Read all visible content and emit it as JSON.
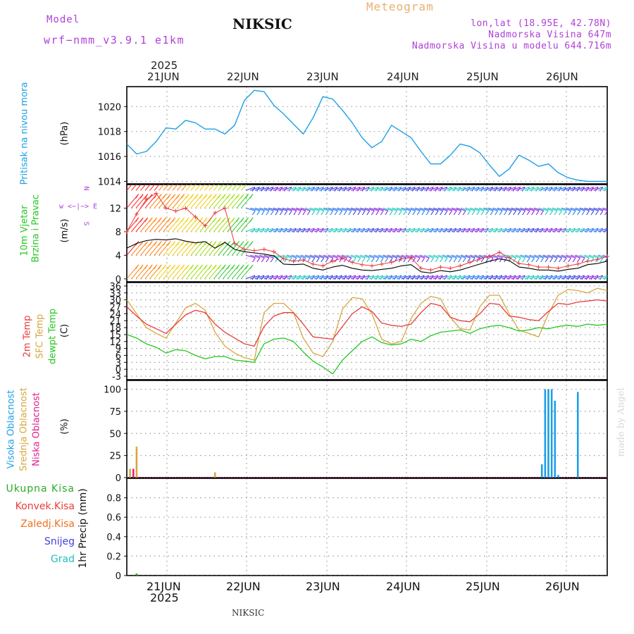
{
  "header": {
    "model_label": "Model",
    "model_name": "wrf−nmm_v3.9.1 e1km",
    "station": "NIKSIC",
    "title": "Meteogram",
    "coords": "lon,lat (18.95E, 42.78N)",
    "elevation": "Nadmorska Visina 647m",
    "model_elevation": "Nadmorska Visina u modelu 644.716m"
  },
  "footer": {
    "station": "NIKSIC",
    "credit": "made by Angel"
  },
  "colors": {
    "pressure": "#1E9FE6",
    "temp2m": "#E83C3C",
    "sfc_temp": "#D9A640",
    "dewpoint": "#22C81E",
    "label_purple": "#B040D8",
    "label_orange": "#F5A83C",
    "cloud_high": "#1E9FE6",
    "cloud_mid": "#D9A640",
    "cloud_low": "#E0208A",
    "precip_total": "#2AAA2A",
    "precip_conv": "#E83C3C",
    "precip_frz": "#F07020",
    "precip_snow": "#4040E0",
    "precip_grad": "#20C0C0"
  },
  "chart_data": [
    {
      "panel": "pressure",
      "type": "line",
      "year_top": "2025",
      "day_labels": [
        "21JUN",
        "22JUN",
        "23JUN",
        "24JUN",
        "25JUN",
        "26JUN"
      ],
      "label_1": "Pritisak na nivou mora",
      "unit": "(hPa)",
      "ylim": [
        1013.8,
        1021.6
      ],
      "yticks": [
        1014,
        1016,
        1018,
        1020
      ],
      "grid": true,
      "x_hours": [
        0,
        3,
        6,
        9,
        12,
        15,
        18,
        21,
        24,
        27,
        30,
        33,
        36,
        39,
        42,
        45,
        48,
        51,
        54,
        57,
        60,
        63,
        66,
        69,
        72,
        75,
        78,
        81,
        84,
        87,
        90,
        93,
        96,
        99,
        102,
        105,
        108,
        111,
        114,
        117,
        120,
        123,
        126,
        129,
        132,
        135,
        138,
        141,
        144,
        147
      ],
      "values": [
        1017.0,
        1016.2,
        1016.4,
        1017.2,
        1018.3,
        1018.2,
        1018.9,
        1018.7,
        1018.2,
        1018.2,
        1017.8,
        1018.5,
        1020.5,
        1021.3,
        1021.2,
        1020.1,
        1019.4,
        1018.6,
        1017.8,
        1019.1,
        1020.8,
        1020.6,
        1019.7,
        1018.7,
        1017.5,
        1016.7,
        1017.2,
        1018.5,
        1018.0,
        1017.5,
        1016.4,
        1015.4,
        1015.4,
        1016.1,
        1017.0,
        1016.8,
        1016.3,
        1015.3,
        1014.4,
        1015.0,
        1016.1,
        1015.7,
        1015.2,
        1015.4,
        1014.7,
        1014.3,
        1014.1,
        1014.0,
        1014.0,
        1014.0
      ]
    },
    {
      "panel": "wind",
      "type": "line",
      "label_1": "10m Vjetar",
      "label_2": "Brzina i Pravac",
      "unit": "(m/s)",
      "compass_1": "N",
      "compass_2": "w <−|−> E",
      "compass_3": "S",
      "ylim": [
        -0.5,
        16
      ],
      "yticks": [
        0,
        4,
        8,
        12
      ],
      "grid": true,
      "x_hours": [
        0,
        3,
        6,
        9,
        12,
        15,
        18,
        21,
        24,
        27,
        30,
        33,
        36,
        39,
        42,
        45,
        48,
        51,
        54,
        57,
        60,
        63,
        66,
        69,
        72,
        75,
        78,
        81,
        84,
        87,
        90,
        93,
        96,
        99,
        102,
        105,
        108,
        111,
        114,
        117,
        120,
        123,
        126,
        129,
        132,
        135,
        138,
        141,
        144,
        147
      ],
      "series": [
        {
          "values": [
            5.2,
            6.0,
            6.5,
            6.7,
            6.6,
            6.8,
            6.4,
            6.1,
            6.3,
            5.2,
            6.2,
            5.0,
            4.6,
            4.4,
            4.2,
            3.9,
            2.5,
            2.4,
            2.5,
            1.8,
            1.5,
            2.0,
            2.3,
            1.8,
            1.5,
            1.4,
            1.6,
            1.8,
            2.2,
            2.4,
            1.2,
            1.0,
            1.4,
            1.2,
            1.5,
            2.0,
            2.5,
            3.0,
            3.4,
            3.1,
            2.0,
            1.8,
            1.5,
            1.5,
            1.3,
            1.6,
            1.8,
            2.4,
            2.6,
            3.0
          ]
        },
        {
          "values": [
            8.0,
            11.0,
            13.5,
            14.5,
            12.0,
            11.5,
            12.0,
            10.5,
            9.0,
            11.2,
            12.0,
            6.0,
            5.0,
            4.8,
            5.0,
            4.6,
            3.4,
            3.0,
            3.2,
            2.5,
            2.2,
            3.0,
            3.5,
            2.8,
            2.4,
            2.2,
            2.5,
            2.8,
            3.4,
            3.6,
            1.8,
            1.5,
            2.0,
            1.8,
            2.2,
            2.8,
            3.4,
            3.8,
            4.5,
            3.6,
            2.6,
            2.4,
            2.0,
            2.0,
            1.8,
            2.2,
            2.5,
            3.0,
            3.3,
            3.8
          ]
        }
      ]
    },
    {
      "panel": "temperature",
      "type": "line",
      "label_1": "2m Temp",
      "label_2": "SFC Temp",
      "label_3": "dewpt Temp",
      "unit": "(C)",
      "ylim": [
        -4.5,
        37.5
      ],
      "yticks": [
        -3,
        0,
        3,
        6,
        9,
        12,
        15,
        18,
        21,
        24,
        27,
        30,
        33,
        36
      ],
      "grid": true,
      "x_hours": [
        0,
        3,
        6,
        9,
        12,
        15,
        18,
        21,
        24,
        27,
        30,
        33,
        36,
        39,
        42,
        45,
        48,
        51,
        54,
        57,
        60,
        63,
        66,
        69,
        72,
        75,
        78,
        81,
        84,
        87,
        90,
        93,
        96,
        99,
        102,
        105,
        108,
        111,
        114,
        117,
        120,
        123,
        126,
        129,
        132,
        135,
        138,
        141,
        144,
        147
      ],
      "series": [
        {
          "values": [
            27.0,
            23.0,
            19.5,
            17.5,
            15.5,
            19.5,
            23.5,
            25.5,
            24.5,
            19.5,
            16.0,
            13.5,
            11.0,
            10.0,
            18.5,
            23.0,
            24.5,
            24.5,
            19.5,
            14.0,
            13.5,
            13.0,
            18.5,
            24.0,
            27.0,
            25.0,
            20.0,
            19.0,
            18.5,
            19.5,
            24.5,
            28.5,
            27.5,
            22.5,
            21.0,
            20.5,
            24.0,
            28.5,
            28.0,
            23.0,
            22.5,
            21.5,
            21.0,
            25.0,
            28.5,
            28.0,
            29.0,
            29.5,
            30.0,
            29.5
          ]
        },
        {
          "values": [
            30.0,
            24.0,
            18.0,
            15.5,
            13.5,
            20.0,
            26.5,
            28.5,
            25.5,
            16.0,
            10.0,
            7.0,
            5.0,
            4.0,
            24.5,
            28.5,
            28.5,
            24.5,
            13.5,
            7.0,
            5.5,
            12.0,
            26.0,
            31.0,
            30.5,
            24.0,
            13.0,
            11.0,
            12.0,
            22.0,
            28.5,
            31.5,
            30.5,
            22.5,
            17.5,
            17.0,
            27.0,
            32.0,
            32.0,
            24.0,
            17.0,
            15.5,
            14.0,
            24.0,
            32.0,
            34.5,
            34.0,
            33.0,
            35.0,
            34.0
          ]
        },
        {
          "values": [
            15.0,
            13.5,
            11.0,
            9.5,
            7.0,
            8.5,
            8.0,
            6.0,
            4.5,
            5.5,
            5.5,
            4.0,
            3.5,
            3.0,
            11.0,
            13.0,
            13.5,
            12.0,
            7.5,
            3.5,
            1.0,
            -2.0,
            4.0,
            8.0,
            12.0,
            14.0,
            11.5,
            10.5,
            11.0,
            13.0,
            12.0,
            14.5,
            16.0,
            16.5,
            17.0,
            15.5,
            17.5,
            18.5,
            19.0,
            18.0,
            16.5,
            17.0,
            18.0,
            17.5,
            18.5,
            19.0,
            18.5,
            19.5,
            19.0,
            19.5
          ]
        }
      ]
    },
    {
      "panel": "clouds",
      "type": "bar",
      "label_1": "Visoka Oblacnost",
      "label_2": "Srednja Oblacnost",
      "label_3": "Niska Oblacnost",
      "unit": "(%)",
      "ylim": [
        0,
        110
      ],
      "yticks": [
        0,
        25,
        50,
        75,
        100
      ],
      "grid": true,
      "series": [
        {
          "x_hours": [
            127,
            128,
            129,
            130,
            131,
            132,
            138
          ],
          "values": [
            15,
            100,
            100,
            100,
            87,
            3,
            97
          ]
        },
        {
          "x_hours": [
            1,
            3,
            27
          ],
          "values": [
            10,
            35,
            6
          ]
        },
        {
          "x_hours": [
            2
          ],
          "values": [
            10
          ]
        }
      ]
    },
    {
      "panel": "precipitation",
      "type": "bar",
      "unit": "1hr Precip (mm)",
      "legend": [
        "Ukupna Kisa",
        "Konvek.Kisa",
        "Zaledj.Kisa",
        "Snijeg",
        "Grad"
      ],
      "ylim": [
        0,
        1.0
      ],
      "yticks": [
        0,
        0.2,
        0.4,
        0.6,
        0.8
      ],
      "grid": true,
      "x_hours": [
        3
      ],
      "values": [
        0.02
      ],
      "year_bottom": "2025",
      "day_labels": [
        "21JUN",
        "22JUN",
        "23JUN",
        "24JUN",
        "25JUN",
        "26JUN"
      ]
    }
  ]
}
